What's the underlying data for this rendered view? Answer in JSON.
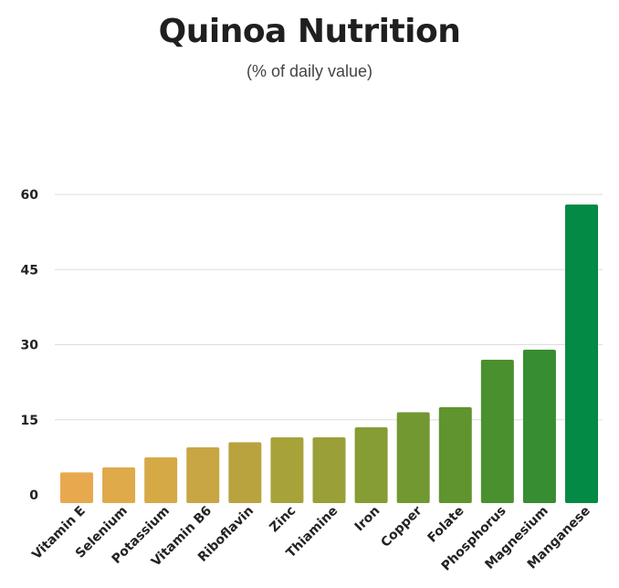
{
  "chart_data": {
    "type": "bar",
    "title": "Quinoa Nutrition",
    "subtitle": "(% of daily value)",
    "xlabel": "",
    "ylabel": "",
    "ylim": [
      0,
      60
    ],
    "yticks": [
      0,
      15,
      30,
      45,
      60
    ],
    "grid": true,
    "categories": [
      "Vitamin E",
      "Selenium",
      "Potassium",
      "Vitamin B6",
      "Riboflavin",
      "Zinc",
      "Thiamine",
      "Iron",
      "Copper",
      "Folate",
      "Phosphorus",
      "Magnesium",
      "Manganese"
    ],
    "values": [
      4.5,
      5.5,
      7.5,
      9.5,
      10.5,
      11.5,
      11.5,
      13.5,
      16.5,
      17.5,
      27,
      29,
      58
    ],
    "colors": [
      "#e8a94e",
      "#dfaa4a",
      "#d6a947",
      "#c8a643",
      "#b8a33f",
      "#a8a23b",
      "#9a9f37",
      "#869c34",
      "#729831",
      "#5f942f",
      "#4a902e",
      "#378d31",
      "#038a44"
    ]
  }
}
